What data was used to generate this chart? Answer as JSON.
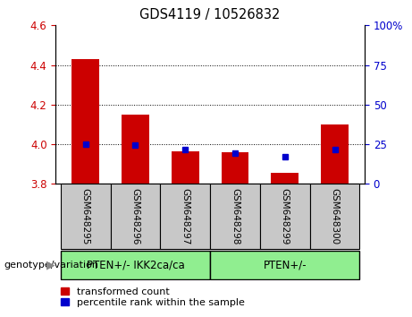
{
  "title": "GDS4119 / 10526832",
  "samples": [
    "GSM648295",
    "GSM648296",
    "GSM648297",
    "GSM648298",
    "GSM648299",
    "GSM648300"
  ],
  "red_bar_values": [
    4.43,
    4.15,
    3.965,
    3.96,
    3.855,
    4.1
  ],
  "blue_dot_values": [
    4.0,
    3.995,
    3.975,
    3.955,
    3.935,
    3.975
  ],
  "bar_baseline": 3.8,
  "ylim_left": [
    3.8,
    4.6
  ],
  "ylim_right": [
    0,
    100
  ],
  "yticks_left": [
    3.8,
    4.0,
    4.2,
    4.4,
    4.6
  ],
  "yticks_right": [
    0,
    25,
    50,
    75,
    100
  ],
  "ytick_labels_right": [
    "0",
    "25",
    "50",
    "75",
    "100%"
  ],
  "group1_label": "PTEN+/- IKK2ca/ca",
  "group2_label": "PTEN+/-",
  "group1_samples": [
    0,
    1,
    2
  ],
  "group2_samples": [
    3,
    4,
    5
  ],
  "group1_color": "#90EE90",
  "group2_color": "#90EE90",
  "red_color": "#CC0000",
  "blue_color": "#0000CC",
  "bar_width": 0.55,
  "legend_items": [
    "transformed count",
    "percentile rank within the sample"
  ],
  "genotype_label": "genotype/variation",
  "left_axis_color": "#CC0000",
  "right_axis_color": "#0000CC",
  "plot_bg_color": "#FFFFFF",
  "label_area_color": "#C8C8C8"
}
